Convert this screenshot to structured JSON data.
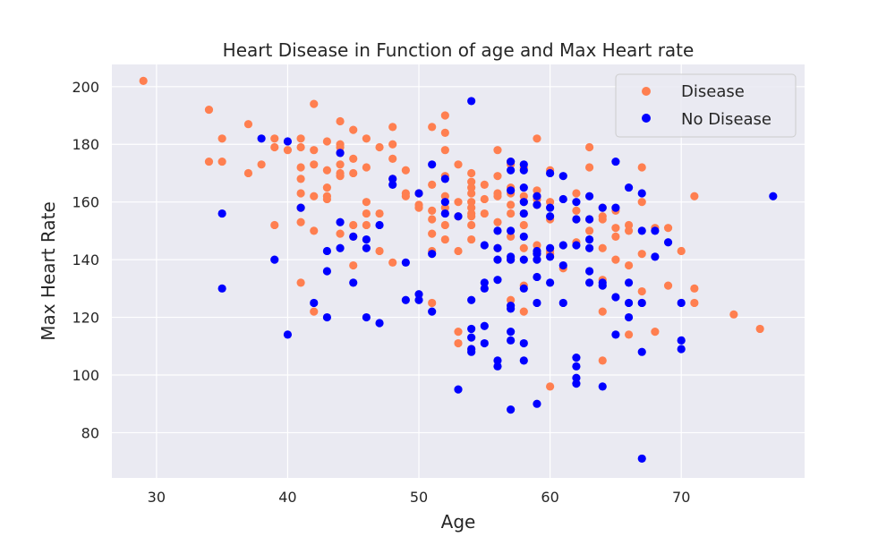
{
  "chart_data": {
    "type": "scatter",
    "title": "Heart Disease in Function of age and Max Heart rate",
    "xlabel": "Age",
    "ylabel": "Max Heart Rate",
    "xlim": [
      26.6,
      79.4
    ],
    "ylim": [
      64.3,
      207.7
    ],
    "xticks": [
      30,
      40,
      50,
      60,
      70
    ],
    "yticks": [
      80,
      100,
      120,
      140,
      160,
      180,
      200
    ],
    "grid": true,
    "legend_position": "top-right",
    "colors": {
      "plot_bg": "#eaeaf2",
      "grid": "#ffffff",
      "text": "#262626"
    },
    "series": [
      {
        "name": "Disease",
        "color": "#ff7f50",
        "points": [
          [
            29,
            202
          ],
          [
            34,
            192
          ],
          [
            34,
            174
          ],
          [
            35,
            182
          ],
          [
            35,
            174
          ],
          [
            37,
            187
          ],
          [
            37,
            170
          ],
          [
            38,
            173
          ],
          [
            39,
            182
          ],
          [
            39,
            179
          ],
          [
            39,
            152
          ],
          [
            40,
            178
          ],
          [
            41,
            182
          ],
          [
            41,
            179
          ],
          [
            41,
            172
          ],
          [
            41,
            168
          ],
          [
            41,
            163
          ],
          [
            41,
            158
          ],
          [
            41,
            153
          ],
          [
            41,
            132
          ],
          [
            42,
            194
          ],
          [
            42,
            178
          ],
          [
            42,
            173
          ],
          [
            42,
            162
          ],
          [
            42,
            150
          ],
          [
            42,
            122
          ],
          [
            43,
            181
          ],
          [
            43,
            171
          ],
          [
            43,
            165
          ],
          [
            43,
            162
          ],
          [
            43,
            161
          ],
          [
            44,
            188
          ],
          [
            44,
            180
          ],
          [
            44,
            179
          ],
          [
            44,
            177
          ],
          [
            44,
            173
          ],
          [
            44,
            170
          ],
          [
            44,
            169
          ],
          [
            44,
            149
          ],
          [
            45,
            185
          ],
          [
            45,
            175
          ],
          [
            45,
            170
          ],
          [
            45,
            152
          ],
          [
            45,
            148
          ],
          [
            45,
            138
          ],
          [
            46,
            182
          ],
          [
            46,
            172
          ],
          [
            46,
            160
          ],
          [
            46,
            156
          ],
          [
            46,
            152
          ],
          [
            47,
            179
          ],
          [
            47,
            156
          ],
          [
            47,
            143
          ],
          [
            48,
            186
          ],
          [
            48,
            180
          ],
          [
            48,
            175
          ],
          [
            48,
            168
          ],
          [
            48,
            139
          ],
          [
            49,
            171
          ],
          [
            49,
            163
          ],
          [
            49,
            162
          ],
          [
            50,
            163
          ],
          [
            50,
            159
          ],
          [
            50,
            158
          ],
          [
            51,
            186
          ],
          [
            51,
            166
          ],
          [
            51,
            157
          ],
          [
            51,
            154
          ],
          [
            51,
            149
          ],
          [
            51,
            143
          ],
          [
            51,
            125
          ],
          [
            52,
            190
          ],
          [
            52,
            184
          ],
          [
            52,
            178
          ],
          [
            52,
            169
          ],
          [
            52,
            162
          ],
          [
            52,
            158
          ],
          [
            52,
            152
          ],
          [
            52,
            147
          ],
          [
            53,
            173
          ],
          [
            53,
            160
          ],
          [
            53,
            155
          ],
          [
            53,
            143
          ],
          [
            53,
            115
          ],
          [
            53,
            111
          ],
          [
            54,
            170
          ],
          [
            54,
            167
          ],
          [
            54,
            165
          ],
          [
            54,
            163
          ],
          [
            54,
            160
          ],
          [
            54,
            158
          ],
          [
            54,
            156
          ],
          [
            54,
            155
          ],
          [
            54,
            152
          ],
          [
            54,
            147
          ],
          [
            54,
            109
          ],
          [
            55,
            166
          ],
          [
            55,
            161
          ],
          [
            55,
            156
          ],
          [
            56,
            178
          ],
          [
            56,
            169
          ],
          [
            56,
            163
          ],
          [
            56,
            162
          ],
          [
            56,
            153
          ],
          [
            56,
            144
          ],
          [
            57,
            174
          ],
          [
            57,
            173
          ],
          [
            57,
            165
          ],
          [
            57,
            163
          ],
          [
            57,
            159
          ],
          [
            57,
            156
          ],
          [
            57,
            148
          ],
          [
            57,
            140
          ],
          [
            57,
            126
          ],
          [
            58,
            172
          ],
          [
            58,
            162
          ],
          [
            58,
            160
          ],
          [
            58,
            156
          ],
          [
            58,
            152
          ],
          [
            58,
            144
          ],
          [
            58,
            131
          ],
          [
            58,
            122
          ],
          [
            59,
            182
          ],
          [
            59,
            164
          ],
          [
            59,
            162
          ],
          [
            59,
            161
          ],
          [
            59,
            159
          ],
          [
            59,
            145
          ],
          [
            60,
            171
          ],
          [
            60,
            160
          ],
          [
            60,
            154
          ],
          [
            60,
            143
          ],
          [
            60,
            142
          ],
          [
            60,
            96
          ],
          [
            61,
            137
          ],
          [
            62,
            163
          ],
          [
            62,
            157
          ],
          [
            62,
            154
          ],
          [
            62,
            146
          ],
          [
            63,
            179
          ],
          [
            63,
            172
          ],
          [
            63,
            154
          ],
          [
            63,
            150
          ],
          [
            64,
            158
          ],
          [
            64,
            155
          ],
          [
            64,
            154
          ],
          [
            64,
            144
          ],
          [
            64,
            133
          ],
          [
            64,
            122
          ],
          [
            64,
            105
          ],
          [
            65,
            157
          ],
          [
            65,
            151
          ],
          [
            65,
            148
          ],
          [
            65,
            140
          ],
          [
            66,
            152
          ],
          [
            66,
            150
          ],
          [
            66,
            138
          ],
          [
            66,
            114
          ],
          [
            67,
            172
          ],
          [
            67,
            160
          ],
          [
            67,
            142
          ],
          [
            67,
            129
          ],
          [
            67,
            125
          ],
          [
            68,
            151
          ],
          [
            68,
            115
          ],
          [
            69,
            151
          ],
          [
            69,
            131
          ],
          [
            70,
            143
          ],
          [
            71,
            162
          ],
          [
            71,
            130
          ],
          [
            71,
            125
          ],
          [
            74,
            121
          ],
          [
            76,
            116
          ]
        ]
      },
      {
        "name": "No Disease",
        "color": "#0000ff",
        "points": [
          [
            35,
            156
          ],
          [
            35,
            130
          ],
          [
            38,
            182
          ],
          [
            39,
            140
          ],
          [
            40,
            181
          ],
          [
            40,
            114
          ],
          [
            41,
            158
          ],
          [
            42,
            125
          ],
          [
            43,
            143
          ],
          [
            43,
            136
          ],
          [
            43,
            120
          ],
          [
            44,
            177
          ],
          [
            44,
            153
          ],
          [
            44,
            144
          ],
          [
            45,
            148
          ],
          [
            45,
            132
          ],
          [
            46,
            147
          ],
          [
            46,
            144
          ],
          [
            46,
            120
          ],
          [
            47,
            152
          ],
          [
            47,
            118
          ],
          [
            48,
            168
          ],
          [
            48,
            166
          ],
          [
            49,
            139
          ],
          [
            49,
            126
          ],
          [
            50,
            163
          ],
          [
            50,
            128
          ],
          [
            50,
            126
          ],
          [
            51,
            173
          ],
          [
            51,
            142
          ],
          [
            51,
            122
          ],
          [
            52,
            168
          ],
          [
            52,
            160
          ],
          [
            52,
            156
          ],
          [
            53,
            155
          ],
          [
            53,
            95
          ],
          [
            54,
            195
          ],
          [
            54,
            126
          ],
          [
            54,
            116
          ],
          [
            54,
            113
          ],
          [
            54,
            109
          ],
          [
            54,
            108
          ],
          [
            55,
            145
          ],
          [
            55,
            132
          ],
          [
            55,
            130
          ],
          [
            55,
            117
          ],
          [
            55,
            111
          ],
          [
            56,
            150
          ],
          [
            56,
            144
          ],
          [
            56,
            140
          ],
          [
            56,
            133
          ],
          [
            56,
            105
          ],
          [
            56,
            103
          ],
          [
            57,
            174
          ],
          [
            57,
            171
          ],
          [
            57,
            164
          ],
          [
            57,
            150
          ],
          [
            57,
            141
          ],
          [
            57,
            140
          ],
          [
            57,
            124
          ],
          [
            57,
            123
          ],
          [
            57,
            115
          ],
          [
            57,
            112
          ],
          [
            57,
            88
          ],
          [
            58,
            173
          ],
          [
            58,
            171
          ],
          [
            58,
            165
          ],
          [
            58,
            160
          ],
          [
            58,
            156
          ],
          [
            58,
            148
          ],
          [
            58,
            140
          ],
          [
            58,
            130
          ],
          [
            58,
            111
          ],
          [
            58,
            105
          ],
          [
            59,
            162
          ],
          [
            59,
            159
          ],
          [
            59,
            143
          ],
          [
            59,
            142
          ],
          [
            59,
            140
          ],
          [
            59,
            134
          ],
          [
            59,
            125
          ],
          [
            59,
            90
          ],
          [
            60,
            170
          ],
          [
            60,
            158
          ],
          [
            60,
            155
          ],
          [
            60,
            144
          ],
          [
            60,
            141
          ],
          [
            60,
            132
          ],
          [
            61,
            169
          ],
          [
            61,
            161
          ],
          [
            61,
            145
          ],
          [
            61,
            138
          ],
          [
            61,
            125
          ],
          [
            62,
            160
          ],
          [
            62,
            154
          ],
          [
            62,
            145
          ],
          [
            62,
            106
          ],
          [
            62,
            103
          ],
          [
            62,
            99
          ],
          [
            62,
            97
          ],
          [
            63,
            162
          ],
          [
            63,
            154
          ],
          [
            63,
            147
          ],
          [
            63,
            144
          ],
          [
            63,
            136
          ],
          [
            63,
            132
          ],
          [
            64,
            158
          ],
          [
            64,
            132
          ],
          [
            64,
            131
          ],
          [
            64,
            96
          ],
          [
            65,
            174
          ],
          [
            65,
            158
          ],
          [
            65,
            127
          ],
          [
            65,
            114
          ],
          [
            66,
            165
          ],
          [
            66,
            132
          ],
          [
            66,
            125
          ],
          [
            66,
            120
          ],
          [
            67,
            163
          ],
          [
            67,
            150
          ],
          [
            67,
            125
          ],
          [
            67,
            108
          ],
          [
            67,
            71
          ],
          [
            68,
            150
          ],
          [
            68,
            141
          ],
          [
            69,
            146
          ],
          [
            70,
            125
          ],
          [
            70,
            112
          ],
          [
            70,
            109
          ],
          [
            77,
            162
          ]
        ]
      }
    ]
  }
}
